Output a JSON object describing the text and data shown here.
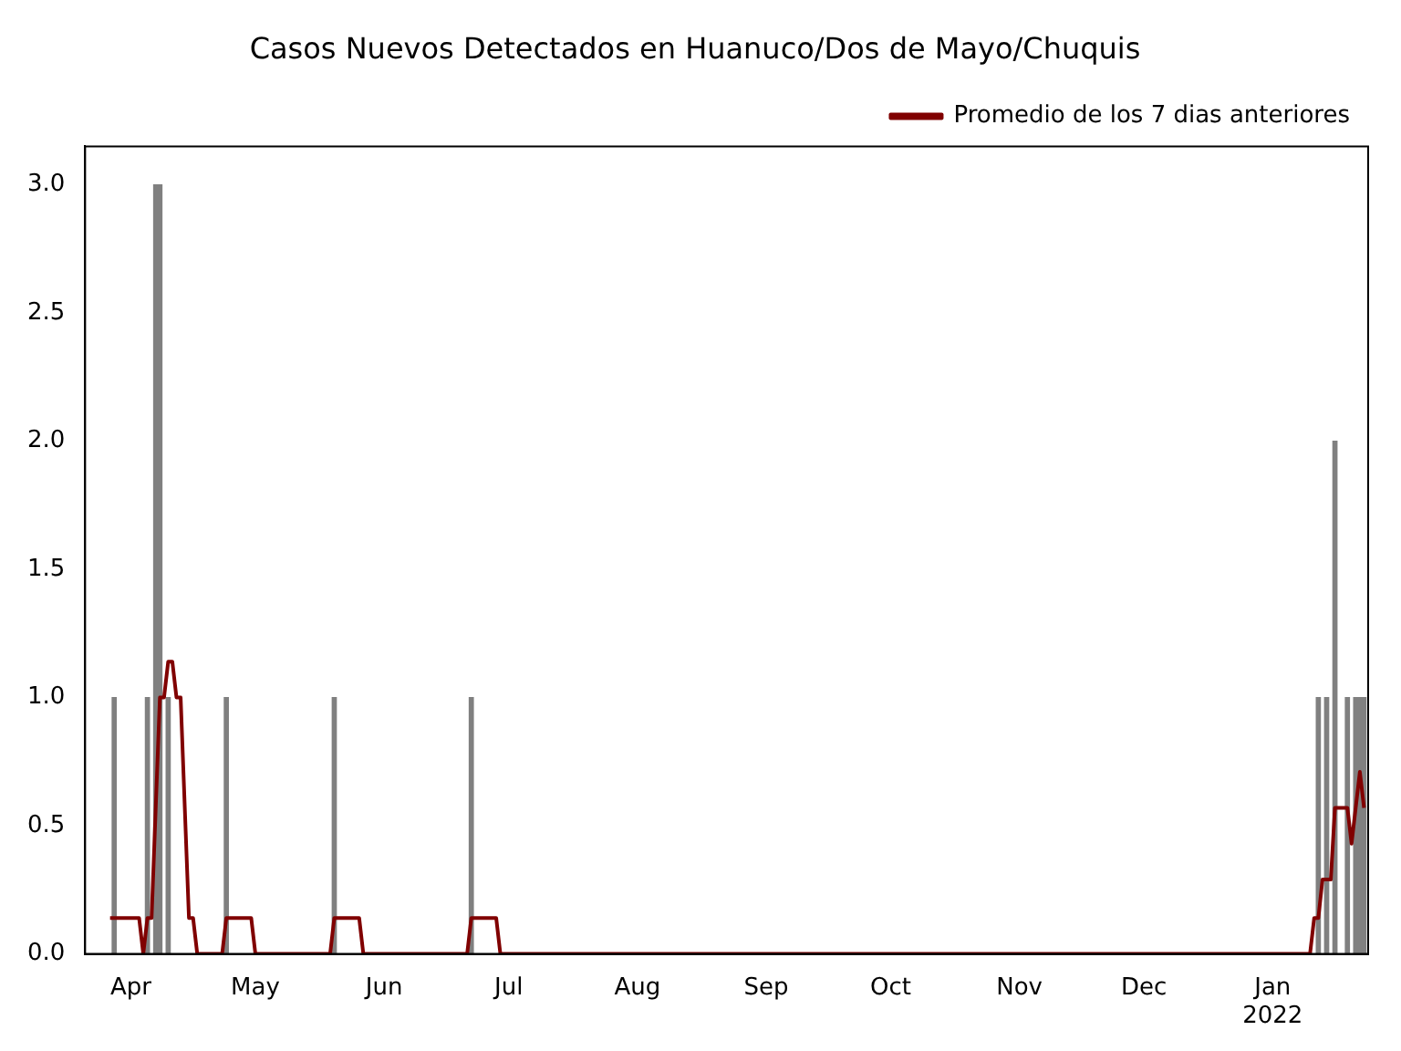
{
  "chart_data": {
    "type": "bar",
    "title": "Casos Nuevos Detectados en Huanuco/Dos de Mayo/Chuquis",
    "series": [
      {
        "color": "#808080",
        "x": [
          "2021-03-28",
          "2021-04-05",
          "2021-04-07",
          "2021-04-08",
          "2021-04-10",
          "2021-04-24",
          "2021-05-20",
          "2021-06-22",
          "2022-01-12",
          "2022-01-14",
          "2022-01-16",
          "2022-01-19",
          "2022-01-21",
          "2022-01-22",
          "2022-01-23"
        ],
        "values": [
          1,
          1,
          3,
          3,
          1,
          1,
          1,
          1,
          1,
          1,
          2,
          1,
          1,
          1,
          1
        ]
      },
      {
        "type": "line",
        "name": "Promedio de los 7 dias anteriores",
        "color": "#800000",
        "x": [
          "2021-03-27",
          "2021-04-03",
          "2021-04-04",
          "2021-04-05",
          "2021-04-06",
          "2021-04-08",
          "2021-04-09",
          "2021-04-10",
          "2021-04-11",
          "2021-04-12",
          "2021-04-13",
          "2021-04-15",
          "2021-04-16",
          "2021-04-17",
          "2021-04-23",
          "2021-04-24",
          "2021-04-30",
          "2021-05-01",
          "2021-05-19",
          "2021-05-20",
          "2021-05-26",
          "2021-05-27",
          "2021-06-21",
          "2021-06-22",
          "2021-06-28",
          "2021-06-29",
          "2022-01-10",
          "2022-01-11",
          "2022-01-12",
          "2022-01-13",
          "2022-01-15",
          "2022-01-16",
          "2022-01-19",
          "2022-01-20",
          "2022-01-22",
          "2022-01-23"
        ],
        "values": [
          0.14,
          0.14,
          0,
          0.14,
          0.14,
          1,
          1,
          1.14,
          1.14,
          1,
          1,
          0.14,
          0.14,
          0,
          0,
          0.14,
          0.14,
          0,
          0,
          0.14,
          0.14,
          0,
          0,
          0.14,
          0.14,
          0,
          0,
          0.14,
          0.14,
          0.29,
          0.29,
          0.57,
          0.57,
          0.43,
          0.71,
          0.57
        ]
      }
    ],
    "xlim": [
      "2021-03-21",
      "2022-01-24"
    ],
    "xticks": [
      {
        "value": "2021-04-01",
        "label": "Apr"
      },
      {
        "value": "2021-05-01",
        "label": "May"
      },
      {
        "value": "2021-06-01",
        "label": "Jun"
      },
      {
        "value": "2021-07-01",
        "label": "Jul"
      },
      {
        "value": "2021-08-01",
        "label": "Aug"
      },
      {
        "value": "2021-09-01",
        "label": "Sep"
      },
      {
        "value": "2021-10-01",
        "label": "Oct"
      },
      {
        "value": "2021-11-01",
        "label": "Nov"
      },
      {
        "value": "2021-12-01",
        "label": "Dec"
      },
      {
        "value": "2022-01-01",
        "label": "Jan\n2022"
      }
    ],
    "ylim": [
      0,
      3.15
    ],
    "yticks": [
      {
        "value": 0,
        "label": "0.0"
      },
      {
        "value": 0.5,
        "label": "0.5"
      },
      {
        "value": 1,
        "label": "1.0"
      },
      {
        "value": 1.5,
        "label": "1.5"
      },
      {
        "value": 2,
        "label": "2.0"
      },
      {
        "value": 2.5,
        "label": "2.5"
      },
      {
        "value": 3,
        "label": "3.0"
      }
    ],
    "legend": "top right"
  }
}
